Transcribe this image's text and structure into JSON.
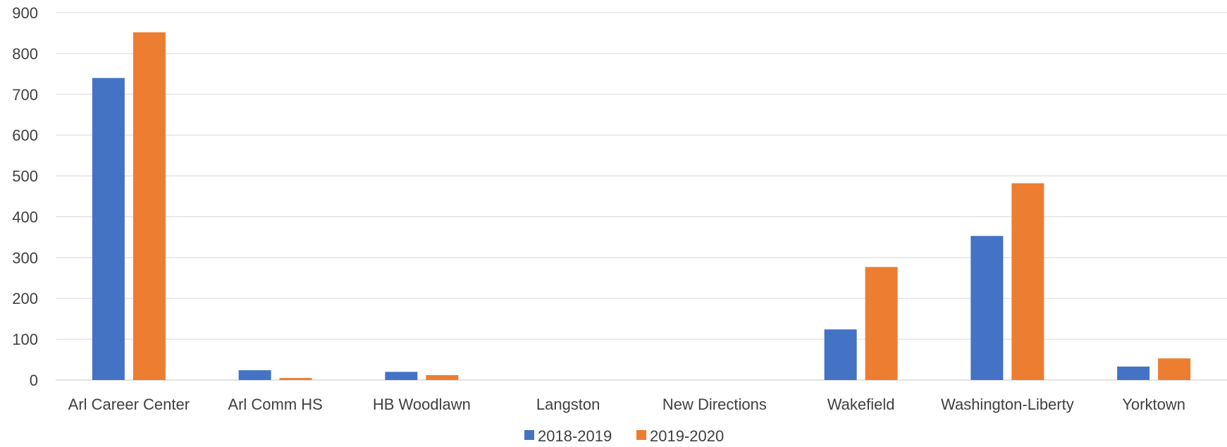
{
  "chart_data": {
    "type": "bar",
    "title": "",
    "xlabel": "",
    "ylabel": "",
    "ylim": [
      0,
      900
    ],
    "yticks": [
      0,
      100,
      200,
      300,
      400,
      500,
      600,
      700,
      800,
      900
    ],
    "grid": true,
    "legend_position": "bottom",
    "categories": [
      "Arl Career Center",
      "Arl Comm HS",
      "HB Woodlawn",
      "Langston",
      "New Directions",
      "Wakefield",
      "Washington-Liberty",
      "Yorktown"
    ],
    "series": [
      {
        "name": "2018-2019",
        "color": "#4472c4",
        "values": [
          740,
          24,
          20,
          0,
          0,
          124,
          353,
          33
        ]
      },
      {
        "name": "2019-2020",
        "color": "#ed7d31",
        "values": [
          852,
          5,
          12,
          0,
          0,
          277,
          482,
          53
        ]
      }
    ]
  }
}
